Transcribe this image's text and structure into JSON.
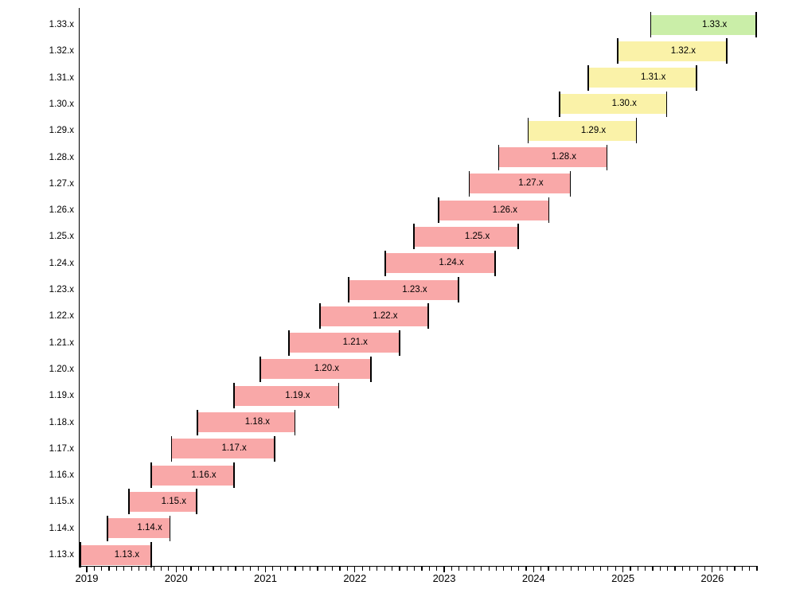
{
  "chart_data": {
    "type": "gantt",
    "title": "",
    "description": "Version support timeline: bars for versions 1.13.x through 1.33.x plotted against years 2019-2026",
    "x_axis": {
      "domain": [
        2018.92,
        2026.5
      ],
      "year_labels": [
        "2019",
        "2020",
        "2021",
        "2022",
        "2023",
        "2024",
        "2025",
        "2026"
      ],
      "minor_tick": "monthly",
      "grid": "off"
    },
    "y_axis": {
      "labels_top_to_bottom": [
        "1.33.x",
        "1.32.x",
        "1.31.x",
        "1.30.x",
        "1.29.x",
        "1.28.x",
        "1.27.x",
        "1.26.x",
        "1.25.x",
        "1.24.x",
        "1.23.x",
        "1.22.x",
        "1.21.x",
        "1.20.x",
        "1.19.x",
        "1.18.x",
        "1.17.x",
        "1.16.x",
        "1.15.x",
        "1.14.x",
        "1.13.x"
      ]
    },
    "legend": "none",
    "status_colors": {
      "end_of_life": "#F9A8A8",
      "maintenance": "#FAF2A8",
      "supported": "#CAEEA8"
    },
    "rows": [
      {
        "version": "1.13.x",
        "start": 2018.93,
        "end": 2019.72,
        "status": "end_of_life"
      },
      {
        "version": "1.14.x",
        "start": 2019.23,
        "end": 2019.93,
        "status": "end_of_life"
      },
      {
        "version": "1.15.x",
        "start": 2019.47,
        "end": 2020.23,
        "status": "end_of_life"
      },
      {
        "version": "1.16.x",
        "start": 2019.72,
        "end": 2020.65,
        "status": "end_of_life"
      },
      {
        "version": "1.17.x",
        "start": 2019.95,
        "end": 2021.1,
        "status": "end_of_life"
      },
      {
        "version": "1.18.x",
        "start": 2020.24,
        "end": 2021.33,
        "status": "end_of_life"
      },
      {
        "version": "1.19.x",
        "start": 2020.65,
        "end": 2021.82,
        "status": "end_of_life"
      },
      {
        "version": "1.20.x",
        "start": 2020.94,
        "end": 2022.18,
        "status": "end_of_life"
      },
      {
        "version": "1.21.x",
        "start": 2021.26,
        "end": 2022.5,
        "status": "end_of_life"
      },
      {
        "version": "1.22.x",
        "start": 2021.61,
        "end": 2022.82,
        "status": "end_of_life"
      },
      {
        "version": "1.23.x",
        "start": 2021.93,
        "end": 2023.16,
        "status": "end_of_life"
      },
      {
        "version": "1.24.x",
        "start": 2022.34,
        "end": 2023.57,
        "status": "end_of_life"
      },
      {
        "version": "1.25.x",
        "start": 2022.66,
        "end": 2023.83,
        "status": "end_of_life"
      },
      {
        "version": "1.26.x",
        "start": 2022.94,
        "end": 2024.17,
        "status": "end_of_life"
      },
      {
        "version": "1.27.x",
        "start": 2023.28,
        "end": 2024.41,
        "status": "end_of_life"
      },
      {
        "version": "1.28.x",
        "start": 2023.61,
        "end": 2024.82,
        "status": "end_of_life"
      },
      {
        "version": "1.29.x",
        "start": 2023.94,
        "end": 2025.15,
        "status": "maintenance"
      },
      {
        "version": "1.30.x",
        "start": 2024.29,
        "end": 2025.49,
        "status": "maintenance"
      },
      {
        "version": "1.31.x",
        "start": 2024.61,
        "end": 2025.82,
        "status": "maintenance"
      },
      {
        "version": "1.32.x",
        "start": 2024.94,
        "end": 2026.16,
        "status": "maintenance"
      },
      {
        "version": "1.33.x",
        "start": 2025.31,
        "end": 2026.49,
        "status": "supported"
      }
    ]
  }
}
